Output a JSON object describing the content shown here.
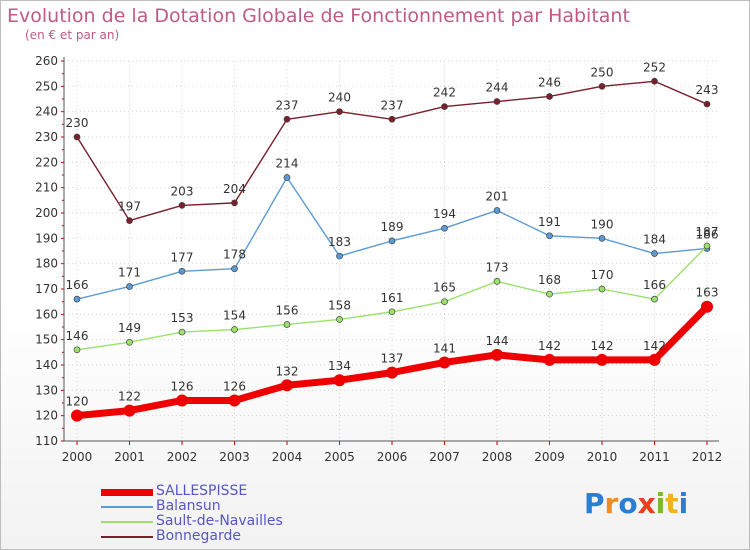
{
  "chart_data": {
    "type": "line",
    "title": "Evolution de la Dotation Globale de Fonctionnement par Habitant",
    "subtitle": "(en € et par an)",
    "x": [
      "2000",
      "2001",
      "2002",
      "2003",
      "2004",
      "2005",
      "2006",
      "2007",
      "2008",
      "2009",
      "2010",
      "2011",
      "2012"
    ],
    "ylim": [
      110,
      260
    ],
    "yticks": [
      110,
      120,
      130,
      140,
      150,
      160,
      170,
      180,
      190,
      200,
      210,
      220,
      230,
      240,
      250,
      260
    ],
    "grid": true,
    "legend_position": "bottom-left",
    "series": [
      {
        "name": "SALLESPISSE",
        "color": "#ee0000",
        "values": [
          120,
          122,
          126,
          126,
          132,
          134,
          137,
          141,
          144,
          142,
          142,
          142,
          163
        ]
      },
      {
        "name": "Balansun",
        "color": "#5b9bd5",
        "values": [
          166,
          171,
          177,
          178,
          214,
          183,
          189,
          194,
          201,
          191,
          190,
          184,
          186
        ]
      },
      {
        "name": "Sault-de-Navailles",
        "color": "#9be26b",
        "values": [
          146,
          149,
          153,
          154,
          156,
          158,
          161,
          165,
          173,
          168,
          170,
          166,
          187
        ]
      },
      {
        "name": "Bonnegarde",
        "color": "#7a1f2b",
        "values": [
          230,
          197,
          203,
          204,
          237,
          240,
          237,
          242,
          244,
          246,
          250,
          252,
          243
        ]
      }
    ]
  },
  "logo": {
    "letters": [
      "P",
      "r",
      "o",
      "x",
      "i",
      "t",
      "i"
    ],
    "colors": [
      "#2a7fd4",
      "#f28c1e",
      "#2a7fd4",
      "#e8401c",
      "#7ab82c",
      "#f2b21e",
      "#2a7fd4"
    ]
  }
}
